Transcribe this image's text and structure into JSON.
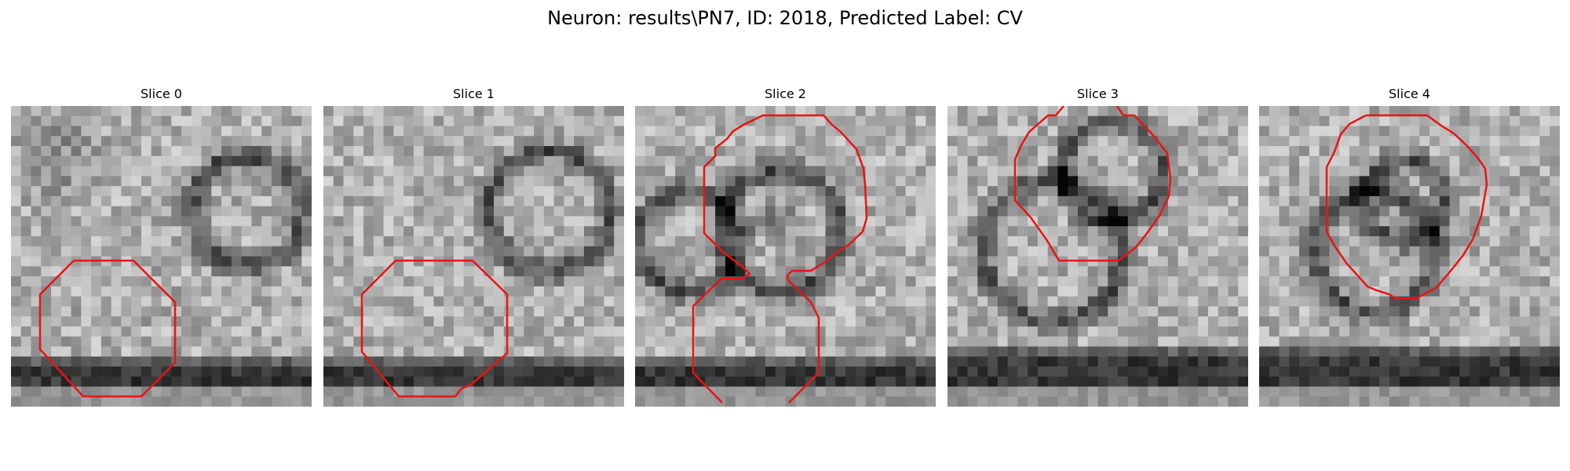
{
  "figure": {
    "title": "Neuron: results\\PN7, ID: 2018, Predicted Label: CV"
  },
  "panels": [
    {
      "title": "Slice 0"
    },
    {
      "title": "Slice 1"
    },
    {
      "title": "Slice 2"
    },
    {
      "title": "Slice 3"
    },
    {
      "title": "Slice 4"
    }
  ],
  "colors": {
    "contour": "#e81414",
    "background": "#ffffff"
  }
}
